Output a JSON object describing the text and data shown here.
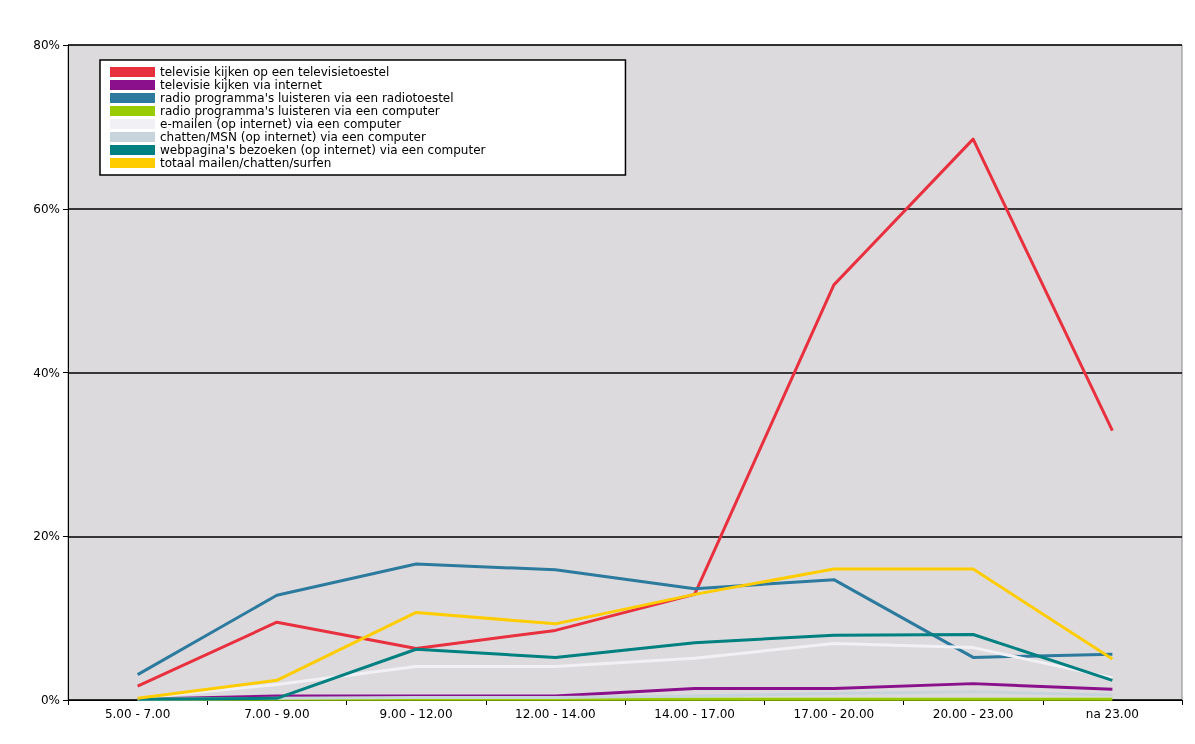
{
  "chart_data": {
    "type": "line",
    "categories": [
      "5.00 - 7.00",
      "7.00 - 9.00",
      "9.00 - 12.00",
      "12.00 - 14.00",
      "14.00 - 17.00",
      "17.00 - 20.00",
      "20.00 - 23.00",
      "na 23.00"
    ],
    "series": [
      {
        "name": "televisie kijken op een televisietoestel",
        "color": "#e8303f",
        "values": [
          1.7,
          9.5,
          6.3,
          8.5,
          12.9,
          50.7,
          68.5,
          32.9
        ]
      },
      {
        "name": "televisie kijken via internet",
        "color": "#8b108b",
        "values": [
          0.1,
          0.5,
          0.5,
          0.5,
          1.4,
          1.4,
          2.0,
          1.3
        ]
      },
      {
        "name": "radio programma's luisteren via een radiotoestel",
        "color": "#2c7a9e",
        "values": [
          3.1,
          12.8,
          16.6,
          15.9,
          13.6,
          14.7,
          5.2,
          5.6
        ]
      },
      {
        "name": "radio programma's luisteren via een computer",
        "color": "#99cc00",
        "values": [
          0.1,
          0.1,
          0.1,
          0.1,
          0.1,
          0.1,
          0.1,
          0.1
        ]
      },
      {
        "name": "e-mailen (op internet) via een computer",
        "color": "#f0f0f5",
        "values": [
          0.2,
          1.9,
          4.1,
          4.1,
          5.1,
          6.9,
          6.4,
          2.7
        ]
      },
      {
        "name": "chatten/MSN (op internet) via een computer",
        "color": "#c8d4dc",
        "values": [
          0.1,
          0.2,
          0.3,
          0.3,
          0.5,
          0.8,
          1.0,
          0.6
        ]
      },
      {
        "name": "webpagina's bezoeken (op internet) via een computer",
        "color": "#008080",
        "values": [
          0.1,
          0.2,
          6.2,
          5.2,
          7.0,
          7.9,
          8.0,
          2.4
        ]
      },
      {
        "name": "totaal mailen/chatten/surfen",
        "color": "#ffcc00",
        "values": [
          0.2,
          2.4,
          10.7,
          9.3,
          12.9,
          16.0,
          16.0,
          5.0
        ]
      }
    ],
    "ylim": [
      0,
      80
    ],
    "yticks": [
      {
        "value": 0,
        "label": "0%"
      },
      {
        "value": 20,
        "label": "20%"
      },
      {
        "value": 40,
        "label": "40%"
      },
      {
        "value": 60,
        "label": "60%"
      },
      {
        "value": 80,
        "label": "80%"
      }
    ],
    "grid": "y",
    "legend": "top left",
    "marker": "none",
    "line_style": "solid"
  }
}
